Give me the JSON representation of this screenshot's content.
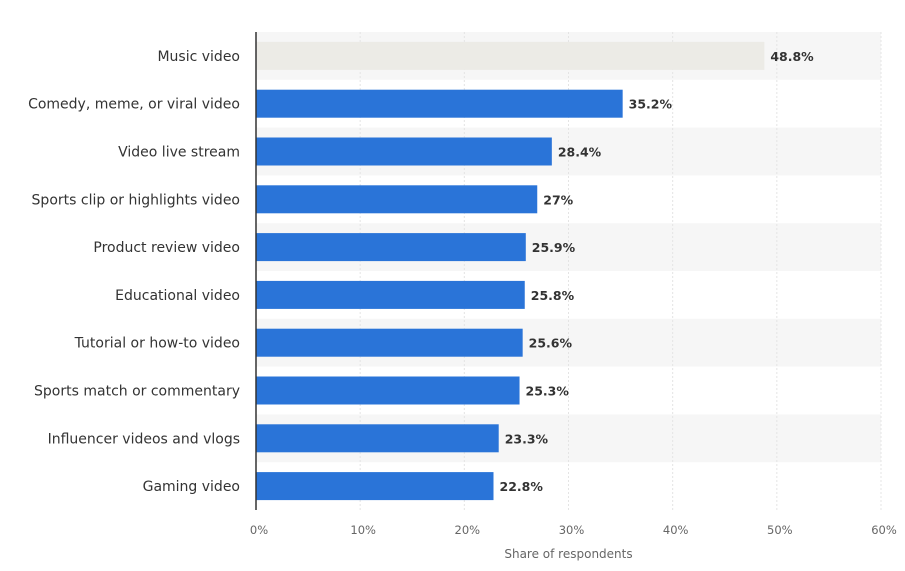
{
  "chart_data": {
    "type": "bar",
    "orientation": "horizontal",
    "categories": [
      "Music video",
      "Comedy, meme, or viral video",
      "Video live stream",
      "Sports clip or highlights video",
      "Product review video",
      "Educational video",
      "Tutorial or how-to video",
      "Sports match or commentary",
      "Influencer videos and vlogs",
      "Gaming video"
    ],
    "values": [
      48.8,
      35.2,
      28.4,
      27,
      25.9,
      25.8,
      25.6,
      25.3,
      23.3,
      22.8
    ],
    "value_labels": [
      "48.8%",
      "35.2%",
      "28.4%",
      "27%",
      "25.9%",
      "25.8%",
      "25.6%",
      "25.3%",
      "23.3%",
      "22.8%"
    ],
    "xlabel": "Share of respondents",
    "ylabel": "",
    "xlim": [
      0,
      60
    ],
    "x_ticks": [
      0,
      10,
      20,
      30,
      40,
      50,
      60
    ],
    "x_tick_labels": [
      "0%",
      "10%",
      "20%",
      "30%",
      "40%",
      "50%",
      "60%"
    ],
    "grid": "vertical",
    "colors": {
      "bar": "#2a74d8",
      "highlight_bar": "#ecebe6",
      "band": "#f6f6f6",
      "grid": "#e4e4e4",
      "axis": "#333333"
    },
    "highlighted_index": 0
  }
}
